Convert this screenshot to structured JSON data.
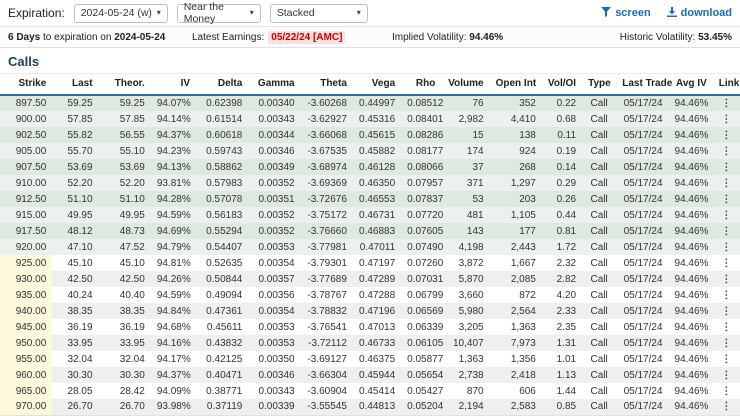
{
  "toolbar": {
    "expiration_label": "Expiration:",
    "expiration_value": "2024-05-24 (w)",
    "moneyness_value": "Near the Money",
    "view_value": "Stacked",
    "screen_label": "screen",
    "download_label": "download"
  },
  "infobar": {
    "days_bold": "6 Days",
    "days_rest": "to expiration on",
    "expiration_date": "2024-05-24",
    "earnings_label": "Latest Earnings:",
    "earnings_value": "05/22/24 [AMC]",
    "implied_vol_label": "Implied Volatility:",
    "implied_vol_value": "94.46%",
    "historic_vol_label": "Historic Volatility:",
    "historic_vol_value": "53.45%"
  },
  "section_title": "Calls",
  "icons": {
    "screen": "filter-icon",
    "download": "download-icon",
    "dropdowns": "chevron-down-icon",
    "links_column": "kebab-menu-icon",
    "chevron_glyph": "▾",
    "kebab_glyph": "⋮"
  },
  "colors": {
    "accent_blue": "#1a6bb5",
    "header_underline": "#2e6da4",
    "earnings_red": "#cc0000",
    "earnings_bg": "#fbe0e0",
    "itm_row_dark": "#dfe9e2",
    "itm_row_light": "#ebf2ed",
    "otm_row_stripe": "#efefef",
    "strike_highlight": "#fcf8da",
    "title_navy": "#17405e"
  },
  "table": {
    "columns": [
      "Strike",
      "Last",
      "Theor.",
      "IV",
      "Delta",
      "Gamma",
      "Theta",
      "Vega",
      "Rho",
      "Volume",
      "Open Int",
      "Vol/OI",
      "Type",
      "Last Trade",
      "Avg IV",
      "Links"
    ],
    "rows": [
      {
        "moneyness": "itm",
        "cells": [
          "897.50",
          "59.25",
          "59.25",
          "94.07%",
          "0.62398",
          "0.00340",
          "-3.60268",
          "0.44997",
          "0.08512",
          "76",
          "352",
          "0.22",
          "Call",
          "05/17/24",
          "94.46%"
        ]
      },
      {
        "moneyness": "itm",
        "cells": [
          "900.00",
          "57.85",
          "57.85",
          "94.14%",
          "0.61514",
          "0.00343",
          "-3.62927",
          "0.45316",
          "0.08401",
          "2,982",
          "4,410",
          "0.68",
          "Call",
          "05/17/24",
          "94.46%"
        ]
      },
      {
        "moneyness": "itm",
        "cells": [
          "902.50",
          "55.82",
          "56.55",
          "94.37%",
          "0.60618",
          "0.00344",
          "-3.66068",
          "0.45615",
          "0.08286",
          "15",
          "138",
          "0.11",
          "Call",
          "05/17/24",
          "94.46%"
        ]
      },
      {
        "moneyness": "itm",
        "cells": [
          "905.00",
          "55.70",
          "55.10",
          "94.23%",
          "0.59743",
          "0.00346",
          "-3.67535",
          "0.45882",
          "0.08177",
          "174",
          "924",
          "0.19",
          "Call",
          "05/17/24",
          "94.46%"
        ]
      },
      {
        "moneyness": "itm",
        "cells": [
          "907.50",
          "53.69",
          "53.69",
          "94.13%",
          "0.58862",
          "0.00349",
          "-3.68974",
          "0.46128",
          "0.08066",
          "37",
          "268",
          "0.14",
          "Call",
          "05/17/24",
          "94.46%"
        ]
      },
      {
        "moneyness": "itm",
        "cells": [
          "910.00",
          "52.20",
          "52.20",
          "93.81%",
          "0.57983",
          "0.00352",
          "-3.69369",
          "0.46350",
          "0.07957",
          "371",
          "1,297",
          "0.29",
          "Call",
          "05/17/24",
          "94.46%"
        ]
      },
      {
        "moneyness": "itm",
        "cells": [
          "912.50",
          "51.10",
          "51.10",
          "94.28%",
          "0.57078",
          "0.00351",
          "-3.72676",
          "0.46553",
          "0.07837",
          "53",
          "203",
          "0.26",
          "Call",
          "05/17/24",
          "94.46%"
        ]
      },
      {
        "moneyness": "itm",
        "cells": [
          "915.00",
          "49.95",
          "49.95",
          "94.59%",
          "0.56183",
          "0.00352",
          "-3.75172",
          "0.46731",
          "0.07720",
          "481",
          "1,105",
          "0.44",
          "Call",
          "05/17/24",
          "94.46%"
        ]
      },
      {
        "moneyness": "itm",
        "cells": [
          "917.50",
          "48.12",
          "48.73",
          "94.69%",
          "0.55294",
          "0.00352",
          "-3.76660",
          "0.46883",
          "0.07605",
          "143",
          "177",
          "0.81",
          "Call",
          "05/17/24",
          "94.46%"
        ]
      },
      {
        "moneyness": "itm",
        "cells": [
          "920.00",
          "47.10",
          "47.52",
          "94.79%",
          "0.54407",
          "0.00353",
          "-3.77981",
          "0.47011",
          "0.07490",
          "4,198",
          "2,443",
          "1.72",
          "Call",
          "05/17/24",
          "94.46%"
        ]
      },
      {
        "moneyness": "otm",
        "cells": [
          "925.00",
          "45.10",
          "45.10",
          "94.81%",
          "0.52635",
          "0.00354",
          "-3.79301",
          "0.47197",
          "0.07260",
          "3,872",
          "1,667",
          "2.32",
          "Call",
          "05/17/24",
          "94.46%"
        ]
      },
      {
        "moneyness": "otm",
        "cells": [
          "930.00",
          "42.50",
          "42.50",
          "94.26%",
          "0.50844",
          "0.00357",
          "-3.77689",
          "0.47289",
          "0.07031",
          "5,870",
          "2,085",
          "2.82",
          "Call",
          "05/17/24",
          "94.46%"
        ]
      },
      {
        "moneyness": "otm",
        "cells": [
          "935.00",
          "40.24",
          "40.40",
          "94.59%",
          "0.49094",
          "0.00356",
          "-3.78767",
          "0.47288",
          "0.06799",
          "3,660",
          "872",
          "4.20",
          "Call",
          "05/17/24",
          "94.46%"
        ]
      },
      {
        "moneyness": "otm",
        "cells": [
          "940.00",
          "38.35",
          "38.35",
          "94.84%",
          "0.47361",
          "0.00354",
          "-3.78832",
          "0.47196",
          "0.06569",
          "5,980",
          "2,564",
          "2.33",
          "Call",
          "05/17/24",
          "94.46%"
        ]
      },
      {
        "moneyness": "otm",
        "cells": [
          "945.00",
          "36.19",
          "36.19",
          "94.68%",
          "0.45611",
          "0.00353",
          "-3.76541",
          "0.47013",
          "0.06339",
          "3,205",
          "1,363",
          "2.35",
          "Call",
          "05/17/24",
          "94.46%"
        ]
      },
      {
        "moneyness": "otm",
        "cells": [
          "950.00",
          "33.95",
          "33.95",
          "94.16%",
          "0.43832",
          "0.00353",
          "-3.72112",
          "0.46733",
          "0.06105",
          "10,407",
          "7,973",
          "1.31",
          "Call",
          "05/17/24",
          "94.46%"
        ]
      },
      {
        "moneyness": "otm",
        "cells": [
          "955.00",
          "32.04",
          "32.04",
          "94.17%",
          "0.42125",
          "0.00350",
          "-3.69127",
          "0.46375",
          "0.05877",
          "1,363",
          "1,356",
          "1.01",
          "Call",
          "05/17/24",
          "94.46%"
        ]
      },
      {
        "moneyness": "otm",
        "cells": [
          "960.00",
          "30.30",
          "30.30",
          "94.37%",
          "0.40471",
          "0.00346",
          "-3.66304",
          "0.45944",
          "0.05654",
          "2,738",
          "2,418",
          "1.13",
          "Call",
          "05/17/24",
          "94.46%"
        ]
      },
      {
        "moneyness": "otm",
        "cells": [
          "965.00",
          "28.05",
          "28.42",
          "94.09%",
          "0.38771",
          "0.00343",
          "-3.60904",
          "0.45414",
          "0.05427",
          "870",
          "606",
          "1.44",
          "Call",
          "05/17/24",
          "94.46%"
        ]
      },
      {
        "moneyness": "otm",
        "cells": [
          "970.00",
          "26.70",
          "26.70",
          "93.98%",
          "0.37119",
          "0.00339",
          "-3.55545",
          "0.44813",
          "0.05204",
          "2,194",
          "2,583",
          "0.85",
          "Call",
          "05/17/24",
          "94.46%"
        ]
      }
    ]
  }
}
